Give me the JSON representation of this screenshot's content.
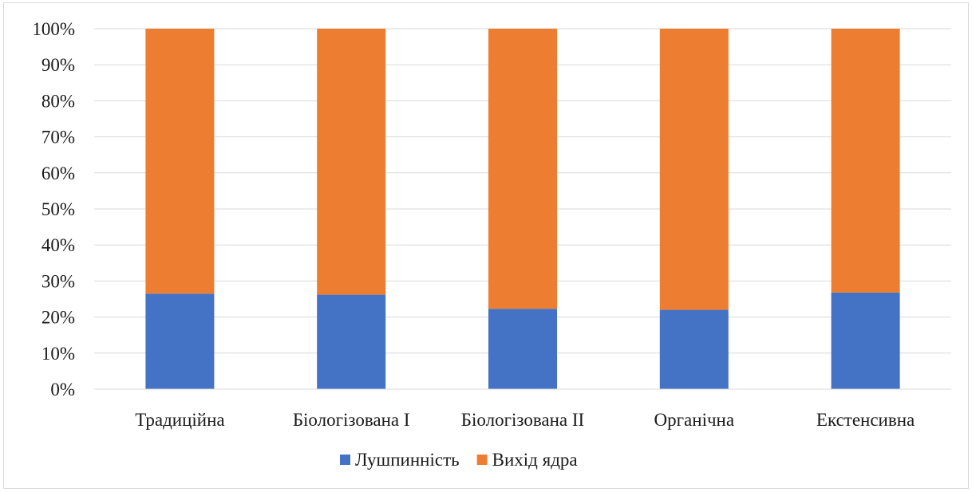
{
  "chart_data": {
    "type": "bar",
    "stacked": true,
    "percent_stacked": true,
    "categories": [
      "Традиційна",
      "Біологізована I",
      "Біологізована II",
      "Органічна",
      "Екстенсивна"
    ],
    "series": [
      {
        "name": "Лушпинність",
        "color": "#4472C4",
        "values": [
          26.5,
          26.2,
          22.3,
          22.0,
          26.8
        ]
      },
      {
        "name": "Вихід ядра",
        "color": "#ED7D31",
        "values": [
          73.5,
          73.8,
          77.7,
          78.0,
          73.2
        ]
      }
    ],
    "y_ticks": [
      "0%",
      "10%",
      "20%",
      "30%",
      "40%",
      "50%",
      "60%",
      "70%",
      "80%",
      "90%",
      "100%"
    ],
    "ylim": [
      0,
      100
    ],
    "grid": true,
    "legend_position": "bottom"
  }
}
